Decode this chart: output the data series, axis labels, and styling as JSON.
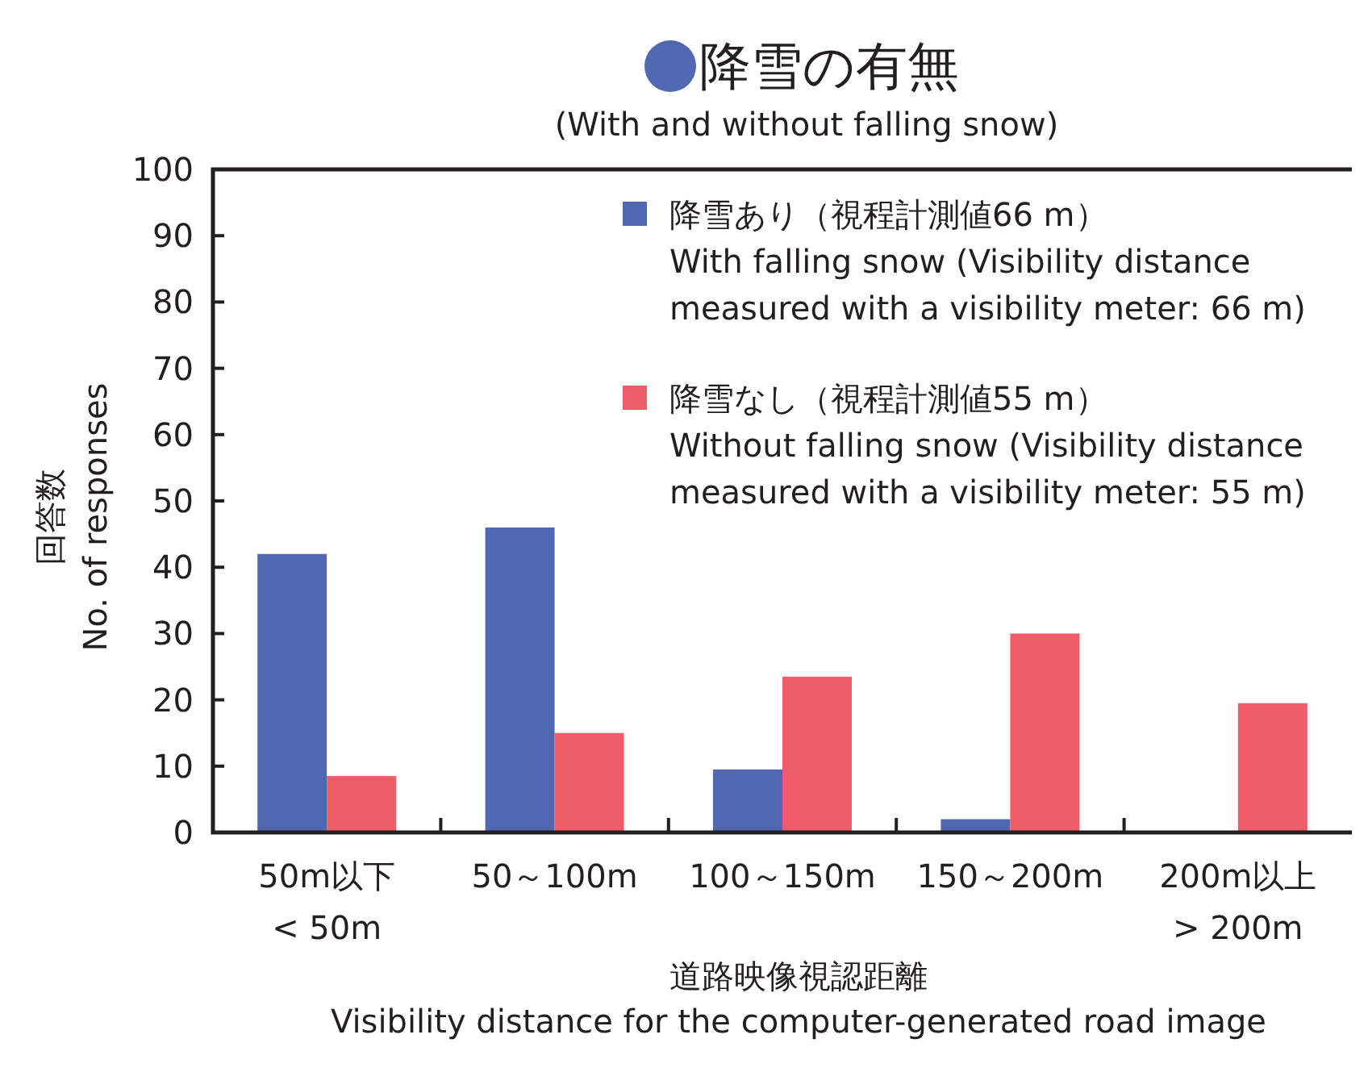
{
  "chart_data": {
    "type": "bar",
    "title": "降雪の有無",
    "subtitle": "(With and without falling snow)",
    "xlabel": "道路映像視認距離\nVisibility distance for the computer-generated road image",
    "ylabel": "回答数\nNo. of responses",
    "categories": [
      "50m以下\n< 50m",
      "50～100m",
      "100～150m",
      "150～200m",
      "200m以上\n> 200m"
    ],
    "series": [
      {
        "name": "降雪あり（視程計測値66 m）\nWith falling snow (Visibility distance\nmeasured with a visibility meter: 66 m)",
        "color": "#4f68b1",
        "values": [
          42,
          46,
          9.5,
          2,
          0
        ]
      },
      {
        "name": "降雪なし（視程計測値55 m）\nWithout falling snow (Visibility distance\nmeasured with a visibility meter: 55 m)",
        "color": "#ef5d68",
        "values": [
          8.5,
          15,
          23.5,
          30,
          19.5
        ]
      }
    ],
    "ylim": [
      0,
      100
    ],
    "yticks": [
      0,
      10,
      20,
      30,
      40,
      50,
      60,
      70,
      80,
      90,
      100
    ],
    "legend": "top right"
  }
}
